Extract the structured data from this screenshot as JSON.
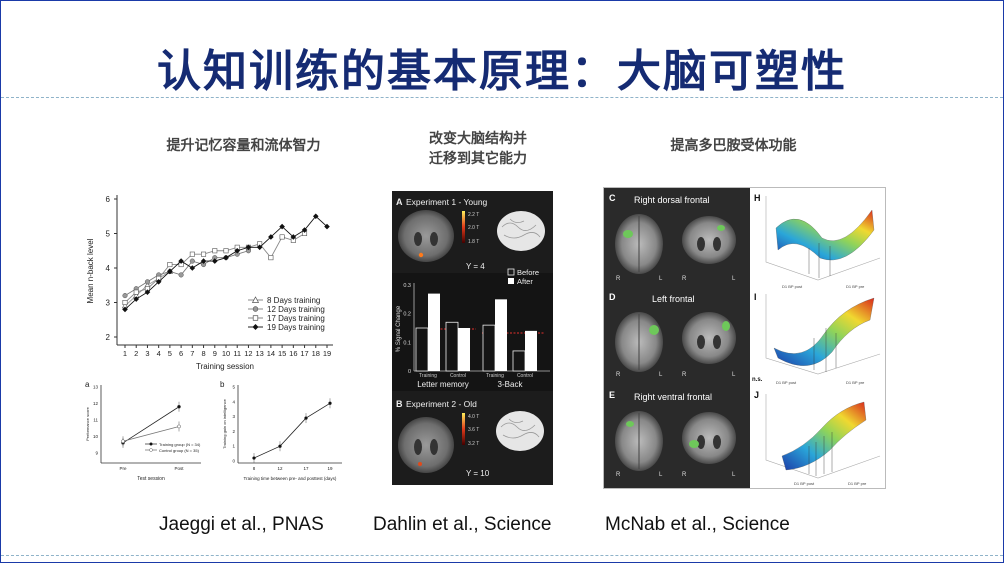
{
  "slide": {
    "title": "认知训练的基本原理：大脑可塑性"
  },
  "columns": [
    {
      "heading": "提升记忆容量和流体智力",
      "citation": "Jaeggi et al., PNAS"
    },
    {
      "heading_line1": "改变大脑结构并",
      "heading_line2": "迁移到其它能力",
      "citation": "Dahlin et al., Science"
    },
    {
      "heading": "提高多巴胺受体功能",
      "citation": "McNab et al., Science"
    }
  ],
  "jaeggi_chart": {
    "chart_data": {
      "type": "line",
      "xlabel": "Training session",
      "ylabel": "Mean n-back level",
      "x": [
        1,
        2,
        3,
        4,
        5,
        6,
        7,
        8,
        9,
        10,
        11,
        12,
        13,
        14,
        15,
        16,
        17,
        18,
        19
      ],
      "xticks": [
        "1",
        "2",
        "3",
        "4",
        "5",
        "6",
        "7",
        "8",
        "9",
        "10",
        "11",
        "12",
        "13",
        "14",
        "15",
        "16",
        "17",
        "18",
        "19"
      ],
      "yticks": [
        "2",
        "3",
        "4",
        "5",
        "6"
      ],
      "ylim": [
        2,
        6
      ],
      "series": [
        {
          "name": "8 Days training",
          "marker": "triangle",
          "values": [
            2.9,
            3.2,
            3.5,
            3.7,
            3.9,
            null,
            null,
            null,
            null,
            null,
            null,
            null,
            null,
            null,
            null,
            null,
            null,
            null,
            null
          ]
        },
        {
          "name": "12 Days training",
          "marker": "gray-circle",
          "values": [
            3.2,
            3.4,
            3.6,
            3.8,
            3.9,
            3.8,
            4.2,
            4.1,
            4.3,
            4.3,
            4.4,
            4.5,
            null,
            null,
            null,
            null,
            null,
            null,
            null
          ]
        },
        {
          "name": "17 Days training",
          "marker": "open-square",
          "values": [
            3.0,
            3.3,
            3.4,
            3.7,
            4.1,
            4.1,
            4.4,
            4.4,
            4.5,
            4.5,
            4.6,
            4.6,
            4.7,
            4.3,
            4.9,
            4.8,
            5.0,
            null,
            null
          ]
        },
        {
          "name": "19 Days training",
          "marker": "filled-diamond",
          "values": [
            2.8,
            3.1,
            3.3,
            3.6,
            3.9,
            4.2,
            4.0,
            4.2,
            4.2,
            4.3,
            4.5,
            4.6,
            4.6,
            4.9,
            5.2,
            4.9,
            5.1,
            5.5,
            5.2
          ]
        }
      ]
    }
  },
  "jaeggi_small_a": {
    "panel_label": "a",
    "chart_data": {
      "type": "line",
      "xlabel": "Test session",
      "ylabel": "Performance score",
      "categories": [
        "Pre",
        "Post"
      ],
      "yticks": [
        "9",
        "10",
        "11",
        "12",
        "13"
      ],
      "ylim": [
        8.5,
        13
      ],
      "series": [
        {
          "name": "Training group  (N = 34)",
          "values": [
            9.6,
            11.8
          ]
        },
        {
          "name": "Control group  (N = 35)",
          "values": [
            9.7,
            10.6
          ]
        }
      ]
    }
  },
  "jaeggi_small_b": {
    "panel_label": "b",
    "chart_data": {
      "type": "line",
      "xlabel": "Training time between pre- and posttest (days)",
      "ylabel": "Training gain on intelligence",
      "categories": [
        "8",
        "12",
        "17",
        "19"
      ],
      "yticks": [
        "0",
        "1",
        "2",
        "3",
        "4",
        "5"
      ],
      "ylim": [
        0,
        5
      ],
      "series": [
        {
          "values": [
            0.2,
            1.0,
            2.9,
            3.9
          ]
        }
      ]
    }
  },
  "dahlin": {
    "panel_a": "A",
    "exp1_label": "Experiment 1 - Young",
    "y1": "Y = 4",
    "scale1": [
      "2.2 T",
      "2.0 T",
      "1.8 T"
    ],
    "legend_before": "Before",
    "legend_after": "After",
    "bar_ylabel": "% Signal Change",
    "bar_yticks": [
      "0",
      "0.1",
      "0.2",
      "0.3"
    ],
    "group1": "Letter memory",
    "group2": "3-Back",
    "sub_training": "Training",
    "sub_control": "Control",
    "chart_data": {
      "type": "bar",
      "ylim": [
        0,
        0.3
      ],
      "categories": [
        "Letter memory Training",
        "Letter memory Control",
        "3-Back Training",
        "3-Back Control"
      ],
      "series": [
        {
          "name": "Before",
          "values": [
            0.15,
            0.17,
            0.16,
            0.07
          ]
        },
        {
          "name": "After",
          "values": [
            0.27,
            0.15,
            0.25,
            0.14
          ]
        }
      ]
    },
    "panel_b": "B",
    "exp2_label": "Experiment 2 - Old",
    "y2": "Y = 10",
    "scale2": [
      "4.0 T",
      "3.6 T",
      "3.2 T"
    ]
  },
  "mcnab": {
    "c": "C",
    "c_label": "Right dorsal frontal",
    "d": "D",
    "d_label": "Left frontal",
    "e": "E",
    "e_label": "Right ventral frontal",
    "h": "H",
    "i": "I",
    "j": "J",
    "ns": "n.s.",
    "r": "R",
    "l": "L",
    "axis_d1_post": "D1 BP post",
    "axis_d1_pre": "D1 BP pre",
    "axis_z": "WM change",
    "accent": "#6ec85a"
  }
}
